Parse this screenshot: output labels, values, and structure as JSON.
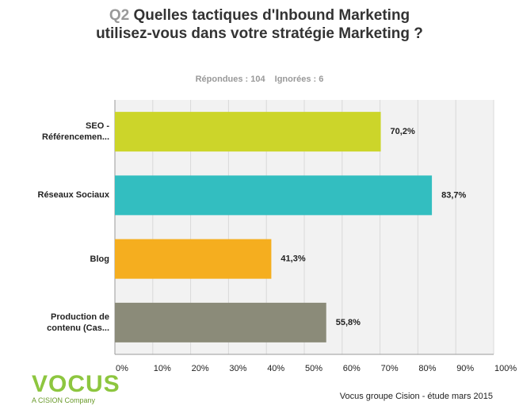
{
  "chart_data": {
    "type": "hbar",
    "question_number": "Q2",
    "title": "Quelles tactiques d'Inbound Marketing utilisez-vous dans votre stratégie Marketing ?",
    "stats": [
      "Répondues : 104",
      "Ignorées : 6"
    ],
    "categories": [
      "SEO - Référencemen...",
      "Réseaux Sociaux",
      "Blog",
      "Production de contenu (Cas..."
    ],
    "values": [
      70.2,
      83.7,
      41.3,
      55.8
    ],
    "value_labels": [
      "70,2%",
      "83,7%",
      "41,3%",
      "55,8%"
    ],
    "colors": [
      "#ccd52a",
      "#33bec0",
      "#f5ae1f",
      "#8b8b79"
    ],
    "xlim": [
      0,
      100
    ],
    "xticks": [
      {
        "value": 0,
        "label": "0%"
      },
      {
        "value": 10,
        "label": "10%"
      },
      {
        "value": 20,
        "label": "20%"
      },
      {
        "value": 30,
        "label": "30%"
      },
      {
        "value": 40,
        "label": "40%"
      },
      {
        "value": 50,
        "label": "50%"
      },
      {
        "value": 60,
        "label": "60%"
      },
      {
        "value": 70,
        "label": "70%"
      },
      {
        "value": 80,
        "label": "80%"
      },
      {
        "value": 90,
        "label": "90%"
      },
      {
        "value": 100,
        "label": "100%"
      }
    ],
    "grid": true
  },
  "logo": {
    "name": "VOCUS",
    "tagline": "A CISION Company"
  },
  "footer": "Vocus groupe Cision - étude mars 2015"
}
